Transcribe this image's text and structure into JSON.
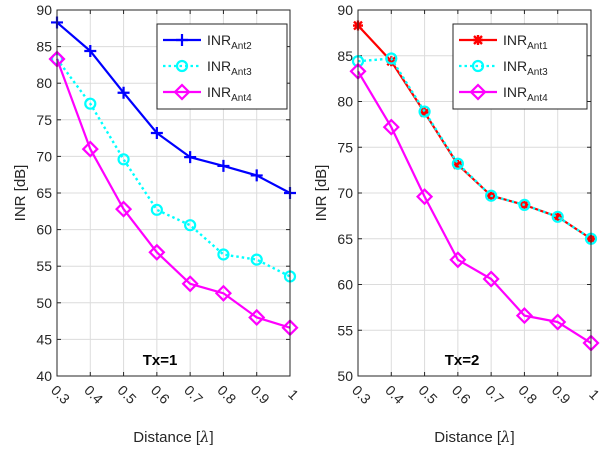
{
  "chart_data": [
    {
      "type": "line",
      "title": "",
      "xlabel": "Distance  [",
      "xlabel_symbol": "λ",
      "xlabel_end": "]",
      "ylabel": "INR [dB]",
      "xlim": [
        0.3,
        1.0
      ],
      "ylim": [
        40,
        90
      ],
      "xticks": [
        0.3,
        0.4,
        0.5,
        0.6,
        0.7,
        0.8,
        0.9,
        1
      ],
      "xtick_labels": [
        "0.3",
        "0.4",
        "0.5",
        "0.6",
        "0.7",
        "0.8",
        "0.9",
        "1"
      ],
      "yticks": [
        40,
        45,
        50,
        55,
        60,
        65,
        70,
        75,
        80,
        85,
        90
      ],
      "ytick_labels": [
        "40",
        "45",
        "50",
        "55",
        "60",
        "65",
        "70",
        "75",
        "80",
        "85",
        "90"
      ],
      "grid": true,
      "legend_position": "top-right",
      "annotation": "Tx=1",
      "x": [
        0.3,
        0.4,
        0.5,
        0.6,
        0.7,
        0.8,
        0.9,
        1.0
      ],
      "series": [
        {
          "name_main": "INR",
          "name_sub": "Ant2",
          "color": "#0000ff",
          "marker": "plus",
          "style": "solid",
          "values": [
            88.3,
            84.4,
            78.7,
            73.2,
            69.9,
            68.7,
            67.4,
            65.0
          ]
        },
        {
          "name_main": "INR",
          "name_sub": "Ant3",
          "color": "#00ffff",
          "marker": "circle",
          "style": "dotted",
          "values": [
            83.3,
            77.2,
            69.6,
            62.7,
            60.6,
            56.6,
            55.9,
            53.6
          ]
        },
        {
          "name_main": "INR",
          "name_sub": "Ant4",
          "color": "#ff00ff",
          "marker": "diamond",
          "style": "solid",
          "values": [
            83.3,
            71.0,
            62.8,
            56.9,
            52.6,
            51.3,
            48.0,
            46.6
          ]
        }
      ]
    },
    {
      "type": "line",
      "title": "",
      "xlabel": "Distance  [",
      "xlabel_symbol": "λ",
      "xlabel_end": "]",
      "ylabel": "INR [dB]",
      "xlim": [
        0.3,
        1.0
      ],
      "ylim": [
        50,
        90
      ],
      "xticks": [
        0.3,
        0.4,
        0.5,
        0.6,
        0.7,
        0.8,
        0.9,
        1
      ],
      "xtick_labels": [
        "0.3",
        "0.4",
        "0.5",
        "0.6",
        "0.7",
        "0.8",
        "0.9",
        "1"
      ],
      "yticks": [
        50,
        55,
        60,
        65,
        70,
        75,
        80,
        85,
        90
      ],
      "ytick_labels": [
        "50",
        "55",
        "60",
        "65",
        "70",
        "75",
        "80",
        "85",
        "90"
      ],
      "grid": true,
      "legend_position": "top-right",
      "annotation": "Tx=2",
      "x": [
        0.3,
        0.4,
        0.5,
        0.6,
        0.7,
        0.8,
        0.9,
        1.0
      ],
      "series": [
        {
          "name_main": "INR",
          "name_sub": "Ant1",
          "color": "#ff0000",
          "marker": "star",
          "style": "solid",
          "values": [
            88.3,
            84.4,
            78.8,
            73.1,
            69.7,
            68.7,
            67.4,
            65.0
          ]
        },
        {
          "name_main": "INR",
          "name_sub": "Ant3",
          "color": "#00ffff",
          "marker": "circle",
          "style": "dotted",
          "values": [
            84.4,
            84.7,
            78.9,
            73.2,
            69.7,
            68.7,
            67.4,
            65.0
          ]
        },
        {
          "name_main": "INR",
          "name_sub": "Ant4",
          "color": "#ff00ff",
          "marker": "diamond",
          "style": "solid",
          "values": [
            83.3,
            77.2,
            69.6,
            62.7,
            60.6,
            56.6,
            55.9,
            53.6
          ]
        }
      ]
    }
  ]
}
